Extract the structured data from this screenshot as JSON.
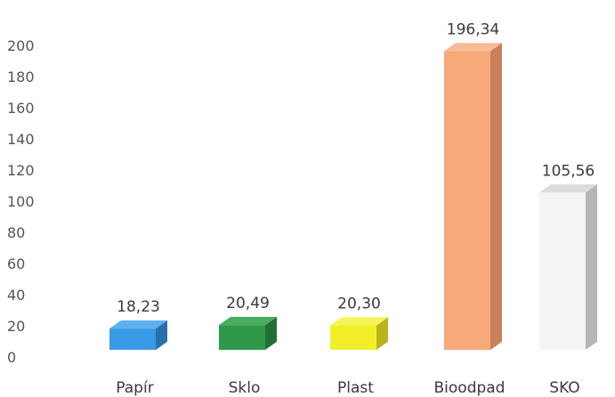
{
  "chart_data": {
    "type": "bar",
    "categories": [
      "Papír",
      "Sklo",
      "Plast",
      "Bioodpad",
      "SKO"
    ],
    "values": [
      18.23,
      20.49,
      20.3,
      196.34,
      105.56
    ],
    "value_labels": [
      "18,23",
      "20,49",
      "20,30",
      "196,34",
      "105,56"
    ],
    "y_ticks": [
      "0",
      "20",
      "40",
      "60",
      "80",
      "100",
      "120",
      "140",
      "160",
      "180",
      "200"
    ],
    "ylim": [
      0,
      200
    ],
    "grid": false,
    "style": "3d-column",
    "colors": [
      "#3a9ae6",
      "#2e9a49",
      "#f2ef2a",
      "#f7a97a",
      "#f4f4f4"
    ],
    "side_colors": [
      "#2870aa",
      "#226f35",
      "#b8b51c",
      "#c8805a",
      "#b5b5b5"
    ],
    "top_colors": [
      "#5cb0ee",
      "#48ad5e",
      "#f7f35a",
      "#f9bb96",
      "#dcdcdc"
    ]
  }
}
